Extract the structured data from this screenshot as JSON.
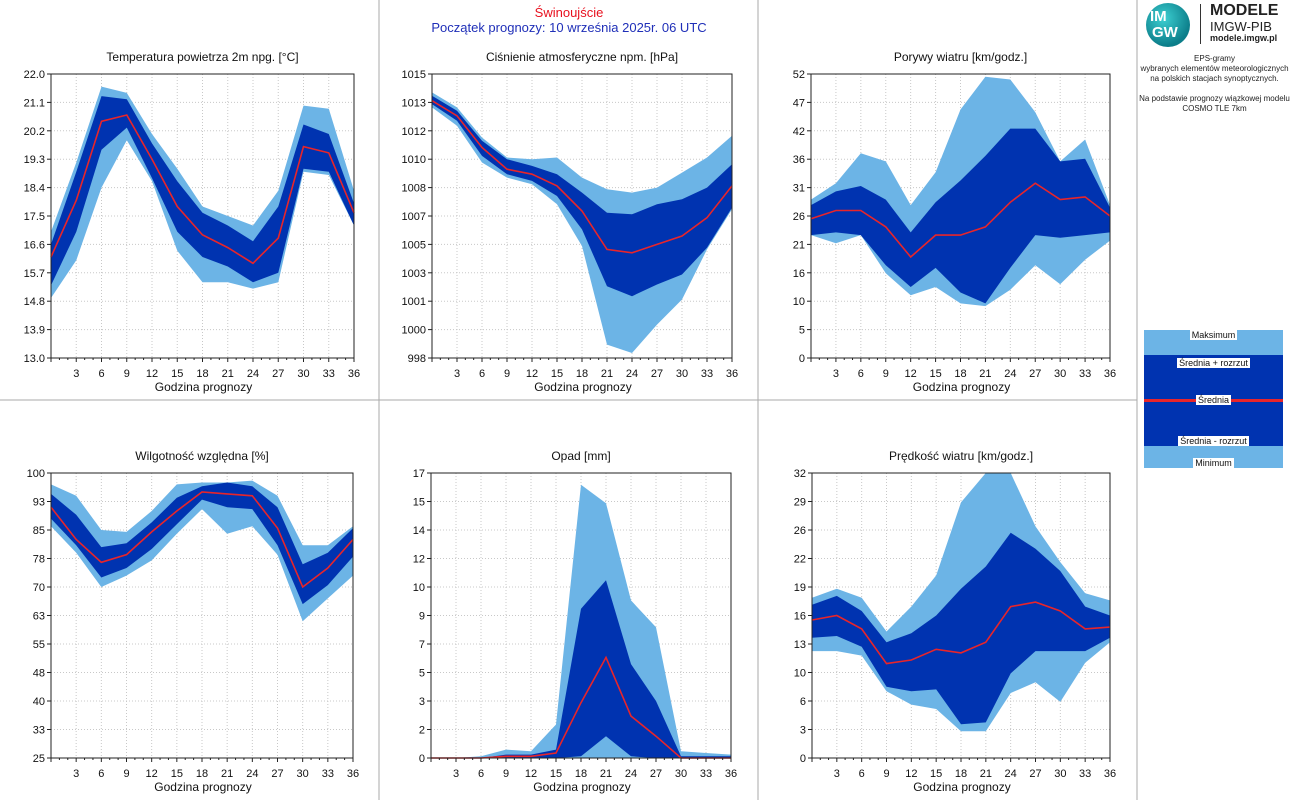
{
  "header": {
    "station": "Świnoujście",
    "forecast_start": "Początek prognozy: 10 września 2025r. 06 UTC"
  },
  "logo": {
    "letters_top": "IM",
    "letters_bottom": "GW",
    "title": "MODELE",
    "subtitle": "IMGW-PIB",
    "url": "modele.imgw.pl"
  },
  "info": {
    "line1": "EPS-gramy",
    "line2": "wybranych elementów meteorologicznych",
    "line3": "na polskich stacjach  synoptycznych.",
    "line4": "Na podstawie prognozy wiązkowej modelu",
    "line5": "COSMO TLE 7km"
  },
  "legend": {
    "max": "Maksimum",
    "mean_plus": "Średnia + rozrzut",
    "mean": "Średnia",
    "mean_minus": "Średnia - rozrzut",
    "min": "Minimum"
  },
  "colors": {
    "outer": "#6cb4e6",
    "inner": "#0033b0",
    "mean": "#e8252a",
    "grid": "#c8c8c8"
  },
  "chart_data": [
    {
      "type": "area",
      "id": "temperature",
      "title": "Temperatura powietrza 2m npg. [°C]",
      "xlabel": "Godzina prognozy",
      "xticks": [
        3,
        6,
        9,
        12,
        15,
        18,
        21,
        24,
        27,
        30,
        33,
        36
      ],
      "ylim": [
        13.0,
        22.0
      ],
      "yticks": [
        "13.0",
        "13.9",
        "14.8",
        "15.7",
        "16.6",
        "17.5",
        "18.4",
        "19.3",
        "20.2",
        "21.1",
        "22.0"
      ],
      "x": [
        0,
        3,
        6,
        9,
        12,
        15,
        18,
        21,
        24,
        27,
        30,
        33,
        36
      ],
      "series": [
        {
          "role": "max",
          "values": [
            17.0,
            19.2,
            21.6,
            21.4,
            20.1,
            19.0,
            17.8,
            17.5,
            17.2,
            18.3,
            21.0,
            20.9,
            18.3
          ]
        },
        {
          "role": "mean_plus",
          "values": [
            16.6,
            18.9,
            21.3,
            21.2,
            19.8,
            18.6,
            17.6,
            17.2,
            16.7,
            17.8,
            20.4,
            20.1,
            17.9
          ]
        },
        {
          "role": "mean",
          "values": [
            16.2,
            18.0,
            20.5,
            20.7,
            19.3,
            17.8,
            16.9,
            16.5,
            16.0,
            16.8,
            19.7,
            19.5,
            17.6
          ]
        },
        {
          "role": "mean_minus",
          "values": [
            15.3,
            17.0,
            19.6,
            20.3,
            18.7,
            17.0,
            16.2,
            15.9,
            15.4,
            15.7,
            19.0,
            18.9,
            17.2
          ]
        },
        {
          "role": "min",
          "values": [
            14.9,
            16.1,
            18.4,
            19.9,
            18.6,
            16.4,
            15.4,
            15.4,
            15.2,
            15.4,
            18.9,
            18.8,
            17.2
          ]
        }
      ]
    },
    {
      "type": "area",
      "id": "pressure",
      "title": "Ciśnienie atmosferyczne npm. [hPa]",
      "xlabel": "Godzina prognozy",
      "xticks": [
        3,
        6,
        9,
        12,
        15,
        18,
        21,
        24,
        27,
        30,
        33,
        36
      ],
      "ylim": [
        998,
        1015
      ],
      "yticks": [
        "998",
        "1000",
        "1001",
        "1003",
        "1005",
        "1007",
        "1008",
        "1010",
        "1012",
        "1013",
        "1015"
      ],
      "x": [
        0,
        3,
        6,
        9,
        12,
        15,
        18,
        21,
        24,
        27,
        30,
        33,
        36
      ],
      "series": [
        {
          "role": "max",
          "values": [
            1013.9,
            1013.0,
            1011.2,
            1010.0,
            1009.9,
            1010.0,
            1008.8,
            1008.1,
            1007.9,
            1008.2,
            1009.1,
            1010.0,
            1011.3
          ]
        },
        {
          "role": "mean_plus",
          "values": [
            1013.7,
            1012.8,
            1011.0,
            1009.9,
            1009.5,
            1009.0,
            1007.9,
            1006.7,
            1006.6,
            1007.2,
            1007.5,
            1008.2,
            1009.6
          ]
        },
        {
          "role": "mean",
          "values": [
            1013.4,
            1012.5,
            1010.6,
            1009.3,
            1009.0,
            1008.3,
            1006.8,
            1004.5,
            1004.3,
            1004.8,
            1005.3,
            1006.4,
            1008.3
          ]
        },
        {
          "role": "mean_minus",
          "values": [
            1013.2,
            1012.2,
            1010.1,
            1009.0,
            1008.6,
            1007.7,
            1005.7,
            1002.3,
            1001.7,
            1002.4,
            1003.0,
            1004.6,
            1007.0
          ]
        },
        {
          "role": "min",
          "values": [
            1013.0,
            1011.9,
            1009.7,
            1008.8,
            1008.4,
            1007.2,
            1004.7,
            998.8,
            998.3,
            1000.0,
            1001.5,
            1004.5,
            1006.9
          ]
        }
      ]
    },
    {
      "type": "area",
      "id": "gusts",
      "title": "Porywy wiatru [km/godz.]",
      "xlabel": "Godzina prognozy",
      "xticks": [
        3,
        6,
        9,
        12,
        15,
        18,
        21,
        24,
        27,
        30,
        33,
        36
      ],
      "ylim": [
        0,
        52
      ],
      "yticks": [
        "0",
        "5",
        "10",
        "16",
        "21",
        "26",
        "31",
        "36",
        "42",
        "47",
        "52"
      ],
      "x": [
        0,
        3,
        6,
        9,
        12,
        15,
        18,
        21,
        24,
        27,
        30,
        33,
        36
      ],
      "series": [
        {
          "role": "max",
          "values": [
            29,
            32,
            37.5,
            36,
            28,
            34,
            45.5,
            51.5,
            51,
            45,
            36,
            40,
            28
          ]
        },
        {
          "role": "mean_plus",
          "values": [
            28,
            30.5,
            31.5,
            29,
            23,
            28.5,
            32.5,
            37,
            42,
            42,
            36,
            36.5,
            27.5
          ]
        },
        {
          "role": "mean",
          "values": [
            25.5,
            27,
            27,
            24,
            18.5,
            22.5,
            22.5,
            24,
            28.5,
            32,
            29,
            29.5,
            26
          ]
        },
        {
          "role": "mean_minus",
          "values": [
            22.5,
            23,
            22.5,
            17,
            13,
            16.5,
            12,
            10,
            16.5,
            22.5,
            22,
            22.5,
            23
          ]
        },
        {
          "role": "min",
          "values": [
            22.5,
            21,
            22.5,
            15.5,
            11.5,
            13,
            10,
            9.5,
            12.5,
            17,
            13.5,
            18,
            21.5
          ]
        }
      ]
    },
    {
      "type": "area",
      "id": "humidity",
      "title": "Wilgotność względna [%]",
      "xlabel": "Godzina prognozy",
      "xticks": [
        3,
        6,
        9,
        12,
        15,
        18,
        21,
        24,
        27,
        30,
        33,
        36
      ],
      "ylim": [
        25,
        100
      ],
      "yticks": [
        "25",
        "33",
        "40",
        "48",
        "55",
        "63",
        "70",
        "78",
        "85",
        "93",
        "100"
      ],
      "x": [
        0,
        3,
        6,
        9,
        12,
        15,
        18,
        21,
        24,
        27,
        30,
        33,
        36
      ],
      "series": [
        {
          "role": "max",
          "values": [
            97,
            94,
            85,
            84.5,
            90,
            97,
            97.5,
            97.5,
            98,
            94,
            81,
            81,
            86
          ]
        },
        {
          "role": "mean_plus",
          "values": [
            94.5,
            89,
            80.5,
            81.5,
            87,
            93.5,
            96.5,
            97.5,
            96.5,
            91,
            76,
            79,
            85.5
          ]
        },
        {
          "role": "mean",
          "values": [
            91,
            82.5,
            76.5,
            78.5,
            84.5,
            90,
            95,
            94.5,
            94,
            85.5,
            70,
            75,
            82.5
          ]
        },
        {
          "role": "mean_minus",
          "values": [
            88,
            81,
            72.5,
            75,
            80,
            86.5,
            93,
            91,
            90.5,
            81,
            65.5,
            70.5,
            78
          ]
        },
        {
          "role": "min",
          "values": [
            86,
            79,
            70,
            73,
            77,
            84,
            90.5,
            84,
            86,
            78.5,
            61,
            67,
            73
          ]
        }
      ]
    },
    {
      "type": "area",
      "id": "precip",
      "title": "Opad [mm]",
      "xlabel": "Godzina prognozy",
      "xticks": [
        3,
        6,
        9,
        12,
        15,
        18,
        21,
        24,
        27,
        30,
        33,
        36
      ],
      "ylim": [
        0,
        17
      ],
      "yticks": [
        "0",
        "2",
        "3",
        "5",
        "7",
        "9",
        "10",
        "12",
        "14",
        "15",
        "17"
      ],
      "x": [
        0,
        3,
        6,
        9,
        12,
        15,
        18,
        21,
        24,
        27,
        30,
        33,
        36
      ],
      "series": [
        {
          "role": "max",
          "values": [
            0,
            0,
            0.1,
            0.5,
            0.4,
            2.0,
            16.3,
            15.2,
            9.4,
            7.8,
            0.4,
            0.3,
            0.2
          ]
        },
        {
          "role": "mean_plus",
          "values": [
            0,
            0,
            0,
            0.2,
            0.2,
            0.5,
            8.9,
            10.6,
            5.6,
            3.4,
            0.1,
            0.1,
            0.1
          ]
        },
        {
          "role": "mean",
          "values": [
            0,
            0,
            0,
            0.1,
            0.1,
            0.3,
            3.3,
            6.0,
            2.5,
            1.3,
            0,
            0,
            0
          ]
        },
        {
          "role": "mean_minus",
          "values": [
            0,
            0,
            0,
            0,
            0,
            0,
            0.1,
            1.3,
            0.1,
            0,
            0,
            0,
            0
          ]
        },
        {
          "role": "min",
          "values": [
            0,
            0,
            0,
            0,
            0,
            0,
            0,
            0,
            0,
            0,
            0,
            0,
            0
          ]
        }
      ]
    },
    {
      "type": "area",
      "id": "wind",
      "title": "Prędkość wiatru [km/godz.]",
      "xlabel": "Godzina prognozy",
      "xticks": [
        3,
        6,
        9,
        12,
        15,
        18,
        21,
        24,
        27,
        30,
        33,
        36
      ],
      "ylim": [
        0,
        32
      ],
      "yticks": [
        "0",
        "3",
        "6",
        "10",
        "13",
        "16",
        "19",
        "22",
        "26",
        "29",
        "32"
      ],
      "x": [
        0,
        3,
        6,
        9,
        12,
        15,
        18,
        21,
        24,
        27,
        30,
        33,
        36
      ],
      "series": [
        {
          "role": "max",
          "values": [
            18,
            19,
            18,
            14.2,
            17,
            20.5,
            28.7,
            32,
            32,
            26,
            22,
            18.5,
            17.7
          ]
        },
        {
          "role": "mean_plus",
          "values": [
            17.2,
            18.2,
            16.5,
            13,
            14,
            16,
            19,
            21.5,
            25.3,
            23.5,
            21,
            17,
            16
          ]
        },
        {
          "role": "mean",
          "values": [
            15.5,
            16,
            14.5,
            10.6,
            11,
            12.2,
            11.8,
            13,
            17,
            17.5,
            16.5,
            14.5,
            14.7
          ]
        },
        {
          "role": "mean_minus",
          "values": [
            13.5,
            13.7,
            12.5,
            8,
            7.5,
            7.7,
            3.8,
            4,
            9.5,
            12,
            12,
            12,
            13.5
          ]
        },
        {
          "role": "min",
          "values": [
            12,
            12,
            11.5,
            7.5,
            6,
            5.5,
            3,
            3,
            7.3,
            8.5,
            6.3,
            10.7,
            13
          ]
        }
      ]
    }
  ]
}
